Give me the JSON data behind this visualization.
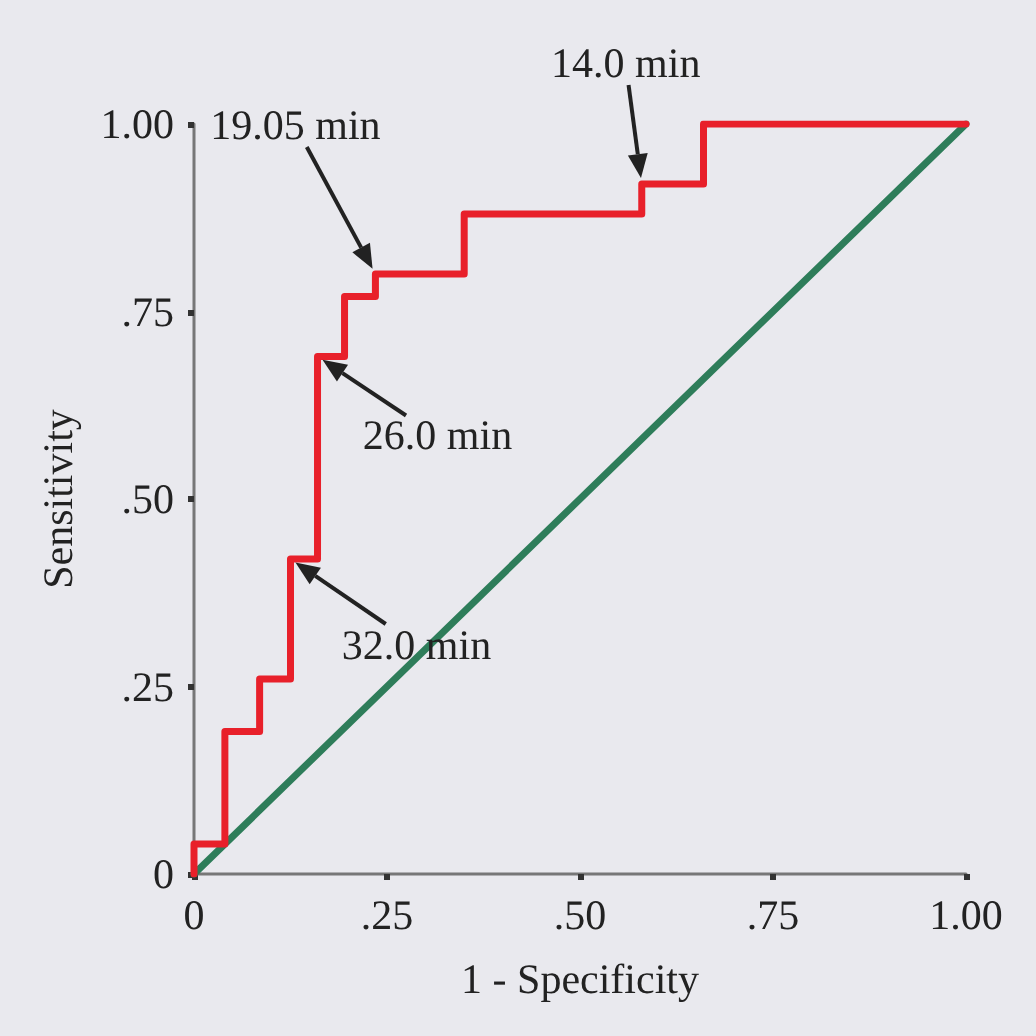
{
  "chart_data": {
    "type": "line",
    "xlabel": "1 - Specificity",
    "ylabel": "Sensitivity",
    "xlim": [
      0,
      1
    ],
    "ylim": [
      0,
      1
    ],
    "xticks": [
      0,
      {
        "value": 0.25,
        "label": ".25"
      },
      {
        "value": 0.5,
        "label": ".50"
      },
      {
        "value": 0.75,
        "label": ".75"
      },
      {
        "value": 1,
        "label": "1.00"
      }
    ],
    "yticks": [
      0,
      {
        "value": 0.25,
        "label": ".25"
      },
      {
        "value": 0.5,
        "label": ".50"
      },
      {
        "value": 0.75,
        "label": ".75"
      },
      {
        "value": 1,
        "label": "1.00"
      }
    ],
    "grid": false,
    "marker": "none",
    "line_style": "solid",
    "series": [
      {
        "color": "#2e7d5a",
        "x": [
          0,
          1
        ],
        "values": [
          0,
          1
        ]
      },
      {
        "color": "#e8202a",
        "x": [
          0,
          0,
          0.04,
          0.04,
          0.085,
          0.085,
          0.125,
          0.125,
          0.16,
          0.16,
          0.195,
          0.195,
          0.235,
          0.235,
          0.35,
          0.35,
          0.58,
          0.58,
          0.66,
          0.66,
          1
        ],
        "values": [
          0,
          0.04,
          0.04,
          0.19,
          0.19,
          0.26,
          0.26,
          0.42,
          0.42,
          0.69,
          0.69,
          0.77,
          0.77,
          0.8,
          0.8,
          0.88,
          0.88,
          0.92,
          0.92,
          1,
          1
        ]
      }
    ],
    "annotations": [
      {
        "text": "14.0 min",
        "x": 0.58,
        "y": 0.92
      },
      {
        "text": "19.05 min",
        "x": 0.235,
        "y": 0.8
      },
      {
        "text": "26.0 min",
        "x": 0.16,
        "y": 0.69
      },
      {
        "text": "32.0 min",
        "x": 0.125,
        "y": 0.42
      }
    ]
  }
}
